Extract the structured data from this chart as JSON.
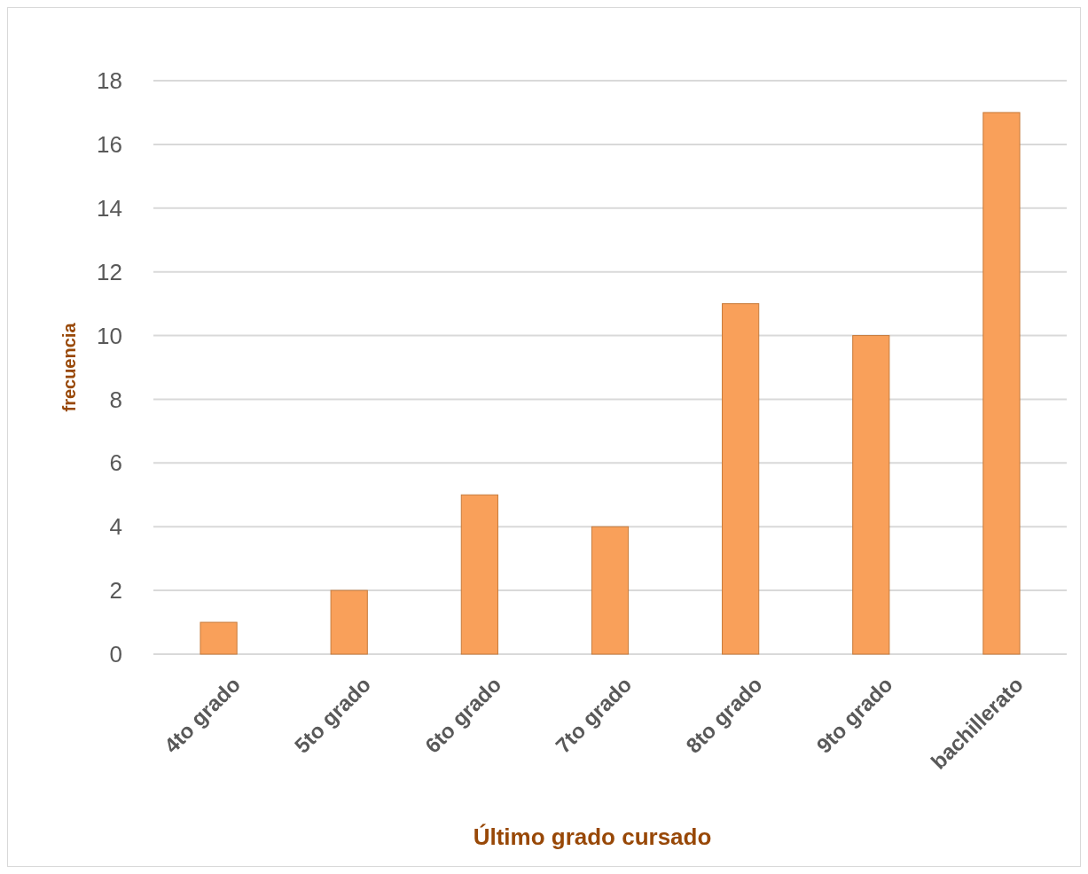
{
  "chart_data": {
    "type": "bar",
    "xlabel": "Último grado cursado",
    "ylabel": "frecuencia",
    "categories": [
      "4to grado",
      "5to grado",
      "6to grado",
      "7to grado",
      "8to grado",
      "9to grado",
      "bachillerato"
    ],
    "values": [
      1,
      2,
      5,
      4,
      11,
      10,
      17
    ],
    "color": "#f9a05a",
    "ylim": [
      0,
      18
    ],
    "yticks": [
      0,
      2,
      4,
      6,
      8,
      10,
      12,
      14,
      16,
      18
    ],
    "grid": true
  }
}
